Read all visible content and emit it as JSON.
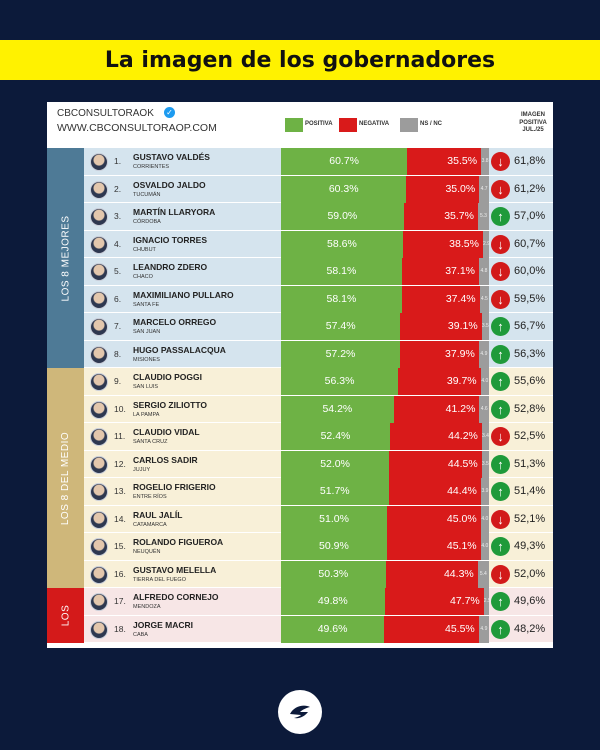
{
  "banner": {
    "title": "La imagen de los gobernadores"
  },
  "header": {
    "brand_handle": "CBCONSULTORAOK",
    "brand_site": "WWW.CBCONSULTORAOP.COM",
    "legend_positiva": "POSITIVA",
    "legend_negativa": "NEGATIVA",
    "legend_nsnc": "NS / NC",
    "img_col_line1": "IMAGEN",
    "img_col_line2": "POSITIVA",
    "img_col_line3": "JUL./25"
  },
  "groups": [
    {
      "label": "LOS 8 MEJORES",
      "color": "#4e7a96",
      "light": "#d5e4ee"
    },
    {
      "label": "LOS 8 DEL MEDIO",
      "color": "#cfb77a",
      "light": "#f8f0d8"
    },
    {
      "label": "LOS",
      "color": "#d41a1a",
      "light": "#f7e6e6"
    }
  ],
  "colors": {
    "positiva": "#6eb245",
    "negativa": "#d91a1a",
    "nsnc": "#9c9c9c",
    "up": "#1f9a3a",
    "down": "#d21a1a",
    "banner": "#fff200",
    "background": "#0c1a3a"
  },
  "chart_data": {
    "type": "bar",
    "title": "La imagen de los gobernadores",
    "series_names": [
      "POSITIVA",
      "NEGATIVA",
      "NS / NC"
    ],
    "rows": [
      {
        "rank": "1.",
        "name": "GUSTAVO VALDÉS",
        "province": "CORRIENTES",
        "pos_label": "60.7%",
        "neg_label": "35.5%",
        "ns_label": "3.8",
        "pos": 60.7,
        "neg": 35.5,
        "ns": 3.8,
        "trend": "down",
        "prev": "61,8%",
        "group": 0
      },
      {
        "rank": "2.",
        "name": "OSVALDO JALDO",
        "province": "TUCUMÁN",
        "pos_label": "60.3%",
        "neg_label": "35.0%",
        "ns_label": "4.7",
        "pos": 60.3,
        "neg": 35.0,
        "ns": 4.7,
        "trend": "down",
        "prev": "61,2%",
        "group": 0
      },
      {
        "rank": "3.",
        "name": "MARTÍN LLARYORA",
        "province": "CÓRDOBA",
        "pos_label": "59.0%",
        "neg_label": "35.7%",
        "ns_label": "5.3",
        "pos": 59.0,
        "neg": 35.7,
        "ns": 5.3,
        "trend": "up",
        "prev": "57,0%",
        "group": 0
      },
      {
        "rank": "4.",
        "name": "IGNACIO TORRES",
        "province": "CHUBUT",
        "pos_label": "58.6%",
        "neg_label": "38.5%",
        "ns_label": "2.9",
        "pos": 58.6,
        "neg": 38.5,
        "ns": 2.9,
        "trend": "down",
        "prev": "60,7%",
        "group": 0
      },
      {
        "rank": "5.",
        "name": "LEANDRO ZDERO",
        "province": "CHACO",
        "pos_label": "58.1%",
        "neg_label": "37.1%",
        "ns_label": "4.8",
        "pos": 58.1,
        "neg": 37.1,
        "ns": 4.8,
        "trend": "down",
        "prev": "60,0%",
        "group": 0
      },
      {
        "rank": "6.",
        "name": "MAXIMILIANO PULLARO",
        "province": "SANTA FE",
        "pos_label": "58.1%",
        "neg_label": "37.4%",
        "ns_label": "4.5",
        "pos": 58.1,
        "neg": 37.4,
        "ns": 4.5,
        "trend": "down",
        "prev": "59,5%",
        "group": 0
      },
      {
        "rank": "7.",
        "name": "MARCELO ORREGO",
        "province": "SAN JUAN",
        "pos_label": "57.4%",
        "neg_label": "39.1%",
        "ns_label": "3.5",
        "pos": 57.4,
        "neg": 39.1,
        "ns": 3.5,
        "trend": "up",
        "prev": "56,7%",
        "group": 0
      },
      {
        "rank": "8.",
        "name": "HUGO PASSALACQUA",
        "province": "MISIONES",
        "pos_label": "57.2%",
        "neg_label": "37.9%",
        "ns_label": "4.9",
        "pos": 57.2,
        "neg": 37.9,
        "ns": 4.9,
        "trend": "up",
        "prev": "56,3%",
        "group": 0
      },
      {
        "rank": "9.",
        "name": "CLAUDIO POGGI",
        "province": "SAN LUIS",
        "pos_label": "56.3%",
        "neg_label": "39.7%",
        "ns_label": "4.0",
        "pos": 56.3,
        "neg": 39.7,
        "ns": 4.0,
        "trend": "up",
        "prev": "55,6%",
        "group": 1
      },
      {
        "rank": "10.",
        "name": "SERGIO ZILIOTTO",
        "province": "LA PAMPA",
        "pos_label": "54.2%",
        "neg_label": "41.2%",
        "ns_label": "4.6",
        "pos": 54.2,
        "neg": 41.2,
        "ns": 4.6,
        "trend": "up",
        "prev": "52,8%",
        "group": 1
      },
      {
        "rank": "11.",
        "name": "CLAUDIO VIDAL",
        "province": "SANTA CRUZ",
        "pos_label": "52.4%",
        "neg_label": "44.2%",
        "ns_label": "3.4",
        "pos": 52.4,
        "neg": 44.2,
        "ns": 3.4,
        "trend": "down",
        "prev": "52,5%",
        "group": 1
      },
      {
        "rank": "12.",
        "name": "CARLOS SADIR",
        "province": "JUJUY",
        "pos_label": "52.0%",
        "neg_label": "44.5%",
        "ns_label": "3.5",
        "pos": 52.0,
        "neg": 44.5,
        "ns": 3.5,
        "trend": "up",
        "prev": "51,3%",
        "group": 1
      },
      {
        "rank": "13.",
        "name": "ROGELIO FRIGERIO",
        "province": "ENTRE RÍOS",
        "pos_label": "51.7%",
        "neg_label": "44.4%",
        "ns_label": "3.9",
        "pos": 51.7,
        "neg": 44.4,
        "ns": 3.9,
        "trend": "up",
        "prev": "51,4%",
        "group": 1
      },
      {
        "rank": "14.",
        "name": "RAUL JALÍL",
        "province": "CATAMARCA",
        "pos_label": "51.0%",
        "neg_label": "45.0%",
        "ns_label": "4.0",
        "pos": 51.0,
        "neg": 45.0,
        "ns": 4.0,
        "trend": "down",
        "prev": "52,1%",
        "group": 1
      },
      {
        "rank": "15.",
        "name": "ROLANDO FIGUEROA",
        "province": "NEUQUÉN",
        "pos_label": "50.9%",
        "neg_label": "45.1%",
        "ns_label": "4.0",
        "pos": 50.9,
        "neg": 45.1,
        "ns": 4.0,
        "trend": "up",
        "prev": "49,3%",
        "group": 1
      },
      {
        "rank": "16.",
        "name": "GUSTAVO MELELLA",
        "province": "TIERRA DEL FUEGO",
        "pos_label": "50.3%",
        "neg_label": "44.3%",
        "ns_label": "5.4",
        "pos": 50.3,
        "neg": 44.3,
        "ns": 5.4,
        "trend": "down",
        "prev": "52,0%",
        "group": 1
      },
      {
        "rank": "17.",
        "name": "ALFREDO CORNEJO",
        "province": "MENDOZA",
        "pos_label": "49.8%",
        "neg_label": "47.7%",
        "ns_label": "2.5",
        "pos": 49.8,
        "neg": 47.7,
        "ns": 2.5,
        "trend": "up",
        "prev": "49,6%",
        "group": 2
      },
      {
        "rank": "18.",
        "name": "JORGE MACRI",
        "province": "CABA",
        "pos_label": "49.6%",
        "neg_label": "45.5%",
        "ns_label": "4.9",
        "pos": 49.6,
        "neg": 45.5,
        "ns": 4.9,
        "trend": "up",
        "prev": "48,2%",
        "group": 2
      }
    ]
  }
}
